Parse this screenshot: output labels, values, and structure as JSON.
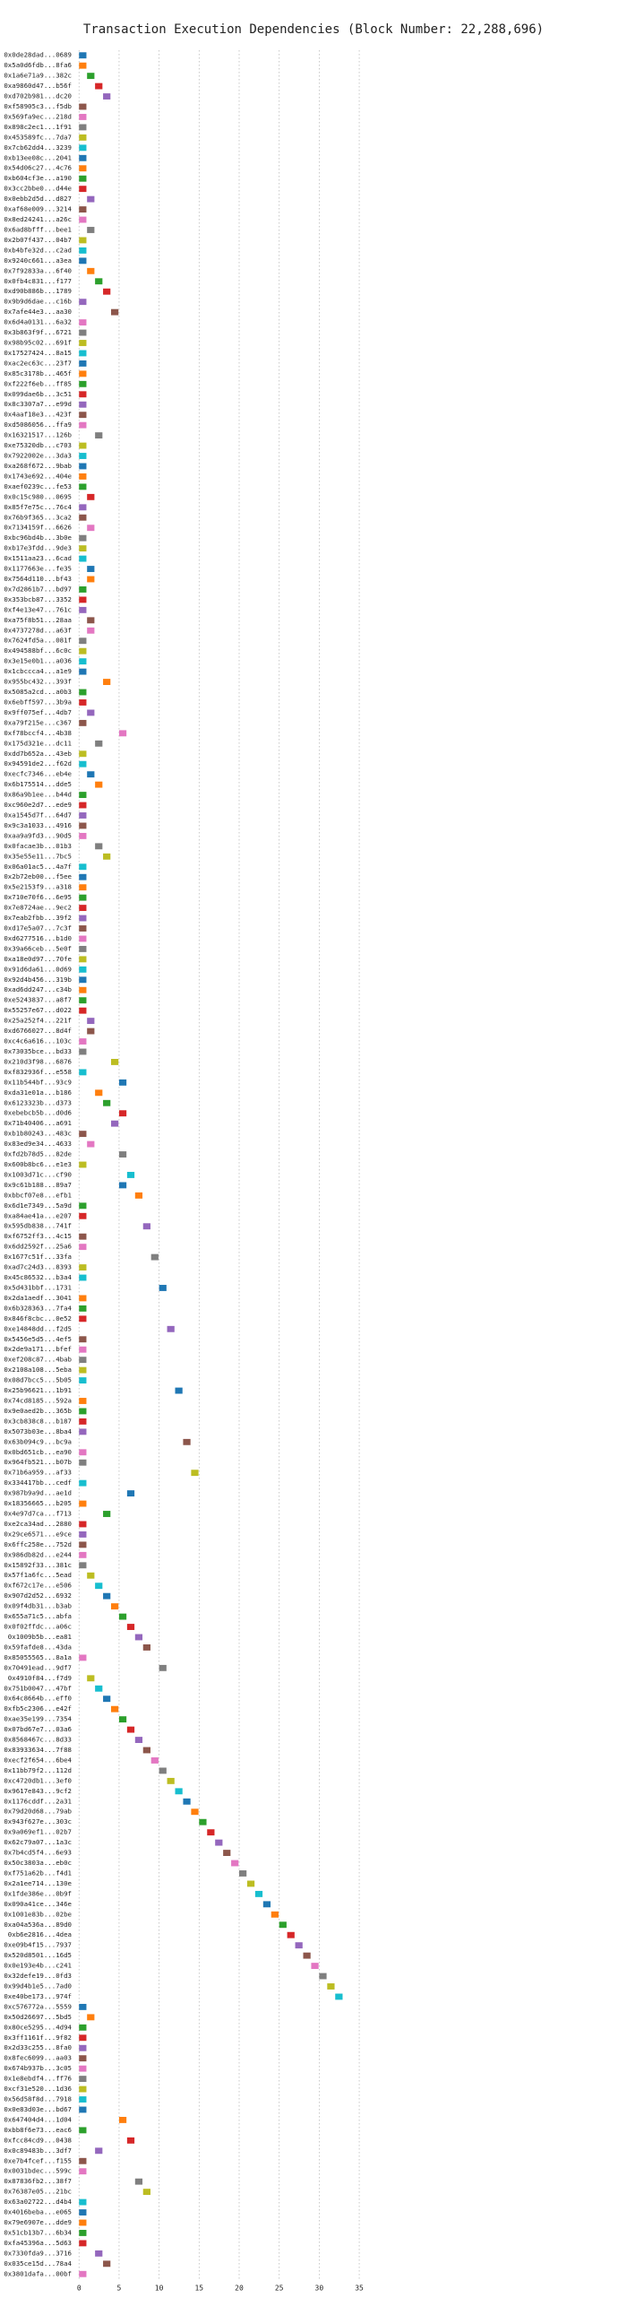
{
  "chart_data": {
    "type": "bar",
    "orientation": "horizontal",
    "title": "Transaction Execution Dependencies (Block Number: 22,288,696)",
    "categories": [
      "0x0de28dad...0689",
      "0x5a0d6fdb...8fa6",
      "0x1a6e71a9...382c",
      "0xa9860d47...b56f",
      "0xd702b981...dc20",
      "0xf58905c3...f5db",
      "0x569fa9ec...218d",
      "0x898c2ec1...1f91",
      "0x453589fc...7da7",
      "0x7cb62dd4...3239",
      "0xb13ee08c...2041",
      "0x54d06c27...4c76",
      "0xb604cf3e...a190",
      "0x3cc2bbe0...d44e",
      "0x0ebb2d5d...d827",
      "0xaf68e009...3214",
      "0x8ed24241...a26c",
      "0x6ad8bfff...bee1",
      "0x2b07f437...04b7",
      "0xb4bfe32d...c2ad",
      "0x9240c661...a3ea",
      "0x7f92833a...6f40",
      "0x0fb4c831...f177",
      "0xd90b886b...1789",
      "0x9b9d6dae...c16b",
      "0x7afe44e3...aa30",
      "0x6d4a0131...6a32",
      "0x3b863f9f...6721",
      "0x98b95c02...691f",
      "0x17527424...8a15",
      "0xac2ec63c...23f7",
      "0x85c3178b...465f",
      "0xf222f6eb...ff85",
      "0x099dae6b...3c51",
      "0x8c3307a7...e99d",
      "0x4aaf18e3...423f",
      "0xd5086056...ffa9",
      "0x16321517...126b",
      "0xe75320db...c703",
      "0x7922002e...3da3",
      "0xa268f672...9bab",
      "0x1743e692...404e",
      "0xaef0239c...fe53",
      "0x0c15c980...0695",
      "0x85f7e75c...76c4",
      "0x76b9f365...3ca2",
      "0x7134159f...6626",
      "0xbc96bd4b...3b0e",
      "0xb17e3fdd...9de3",
      "0x1511aa23...6cad",
      "0x1177663e...fe35",
      "0x7564d110...bf43",
      "0x7d2861b7...bd97",
      "0x353bcb87...3352",
      "0xf4e13e47...761c",
      "0xa75f8b51...28aa",
      "0x4737278d...a63f",
      "0x7624fd5a...081f",
      "0x494588bf...6c0c",
      "0x3e15e0b1...a036",
      "0x1cbccca4...a1e9",
      "0x955bc432...393f",
      "0x5085a2cd...a0b3",
      "0x6ebff597...3b9a",
      "0x9ff075ef...4db7",
      "0xa79f215e...c367",
      "0xf78bccf4...4b38",
      "0x175d321e...dc11",
      "0xdd7b652a...43eb",
      "0x94591de2...f62d",
      "0xecfc7346...eb4e",
      "0x6b175514...dde5",
      "0x86a9b1ee...b44d",
      "0xc960e2d7...ede9",
      "0xa1545d7f...64d7",
      "0x9c3a1033...4916",
      "0xaa9a9fd3...90d5",
      "0x0facae3b...01b3",
      "0x35e55e11...7bc5",
      "0x06a01ac5...4a7f",
      "0x2b72eb00...f5ee",
      "0x5e2153f9...a318",
      "0x710e70f6...6e95",
      "0x7e8724ae...9ec2",
      "0x7eab2fbb...39f2",
      "0xd17e5a07...7c3f",
      "0xd6277516...b1d0",
      "0x39a66ceb...5e0f",
      "0xa18e0d97...70fe",
      "0x91d6da61...0d69",
      "0x92d4b456...319b",
      "0xad6dd247...c34b",
      "0xe5243837...a8f7",
      "0x55257e67...d022",
      "0x25a252f4...221f",
      "0xd6766027...8d4f",
      "0xc4c6a616...103c",
      "0x73035bce...bd33",
      "0x210d3f98...6876",
      "0xf832936f...e558",
      "0x11b544bf...93c9",
      "0xda31e01a...b186",
      "0x6123323b...d373",
      "0xebebcb5b...d0d6",
      "0x71b40406...a691",
      "0xb1b80243...483c",
      "0x83ed9e34...4633",
      "0xfd2b78d5...82de",
      "0x600b8bc6...e1e3",
      "0x1003d71c...cf90",
      "0x9c61b188...89a7",
      "0xbbcf07e8...efb1",
      "0x6d1e7349...5a9d",
      "0xa84ae41a...e207",
      "0x595db838...741f",
      "0xf6752ff3...4c15",
      "0x6dd2592f...25a6",
      "0x1677c51f...33fa",
      "0xad7c24d3...8393",
      "0x45c86532...b3a4",
      "0x5d431bbf...1731",
      "0x2da1aedf...3041",
      "0x6b328363...7fa4",
      "0x846f8cbc...0e52",
      "0xe14848dd...f2d5",
      "0x5456e5d5...4ef5",
      "0x2de9a171...bfef",
      "0xef208c87...4bab",
      "0x2108a108...5eba",
      "0x08d7bcc5...5b05",
      "0x25b96621...1b91",
      "0x74cd8185...592a",
      "0x9e0aed2b...365b",
      "0x3cb838c8...b187",
      "0x5073b03e...8ba4",
      "0x63b094c9...bc9a",
      "0x0bd651cb...ea90",
      "0x964fb521...b07b",
      "0x71b6a959...af33",
      "0x334417bb...cedf",
      "0x987b9a9d...ae1d",
      "0x18356665...b205",
      "0x4e97d7ca...f713",
      "0xe2ca34ad...2880",
      "0x29ce6571...e9ce",
      "0x6ffc258e...752d",
      "0x986db82d...e244",
      "0x15892f33...381c",
      "0x57f1a6fc...5ead",
      "0xf672c17e...e506",
      "0x907d2d52...6932",
      "0x09f4db31...b3ab",
      "0x655a71c5...abfa",
      "0x0f02ffdc...a06c",
      "0x1009b5b...ea81",
      "0x59fafde8...43da",
      "0x85055565...8a1a",
      "0x70491ead...9df7",
      "0x4910f84...f7d9",
      "0x751b0047...47bf",
      "0x64c8664b...eff0",
      "0xfb5c2306...e42f",
      "0xae35e199...7354",
      "0x07bd67e7...03a6",
      "0x8568467c...8d33",
      "0x83933634...7f88",
      "0xecf2f654...6be4",
      "0x11bb79f2...112d",
      "0xc4720db1...3ef0",
      "0x9617e843...9cf2",
      "0x1176cddf...2a31",
      "0x79d20d68...79ab",
      "0x943f627e...303c",
      "0x9a069ef1...02b7",
      "0x62c79a07...1a3c",
      "0x7b4cd5f4...6e93",
      "0x50c3803a...eb0c",
      "0xf751a62b...f4d1",
      "0x2a1ee714...130e",
      "0x1fde386e...0b9f",
      "0x090a41ce...346e",
      "0x1001e83b...02be",
      "0xa04a536a...89d0",
      "0xb6e2816...4dea",
      "0xe09b4f15...7937",
      "0x520d8501...16d5",
      "0x0e193e4b...c241",
      "0x32defe19...0fd3",
      "0x99d4b1e5...7ad0",
      "0xe40be173...974f",
      "0xc576772a...5559",
      "0x50d26697...5bd5",
      "0x80ce5295...4d94",
      "0x3ff1161f...9f82",
      "0x2d33c255...8fa0",
      "0x8fec6099...aa03",
      "0x674b937b...3c05",
      "0x1e8ebdf4...ff76",
      "0xcf31e520...1d36",
      "0x56d58f8d...7918",
      "0x0e83d03e...bd67",
      "0x647404d4...1d04",
      "0xbb8f6e73...eac6",
      "0xfcc84cd9...0438",
      "0x0c89483b...3df7",
      "0xe7b4fcef...f155",
      "0x0031bdec...599c",
      "0x87836fb2...38f7",
      "0x76387e05...21bc",
      "0x63a02722...d4b4",
      "0x4016beba...e065",
      "0x79e6907e...dde9",
      "0x51cb13b7...6b34",
      "0xfa45396a...5d63",
      "0x7330fda9...3716",
      "0x035ce15d...78a4",
      "0x3801dafa...00bf"
    ],
    "values": [
      0,
      0,
      1,
      2,
      3,
      0,
      0,
      0,
      0,
      0,
      0,
      0,
      0,
      0,
      1,
      0,
      0,
      1,
      0,
      0,
      0,
      1,
      2,
      3,
      0,
      4,
      0,
      0,
      0,
      0,
      0,
      0,
      0,
      0,
      0,
      0,
      0,
      2,
      0,
      0,
      0,
      0,
      0,
      1,
      0,
      0,
      1,
      0,
      0,
      0,
      1,
      1,
      0,
      0,
      0,
      1,
      1,
      0,
      0,
      0,
      0,
      3,
      0,
      0,
      1,
      0,
      5,
      2,
      0,
      0,
      1,
      2,
      0,
      0,
      0,
      0,
      0,
      2,
      3,
      0,
      0,
      0,
      0,
      0,
      0,
      0,
      0,
      0,
      0,
      0,
      0,
      0,
      0,
      0,
      1,
      1,
      0,
      0,
      4,
      0,
      5,
      2,
      3,
      5,
      4,
      0,
      1,
      5,
      0,
      6,
      5,
      7,
      0,
      0,
      8,
      0,
      0,
      9,
      0,
      0,
      10,
      0,
      0,
      0,
      11,
      0,
      0,
      0,
      0,
      0,
      12,
      0,
      0,
      0,
      0,
      13,
      0,
      0,
      14,
      0,
      6,
      0,
      3,
      0,
      0,
      0,
      0,
      0,
      1,
      2,
      3,
      4,
      5,
      6,
      7,
      8,
      0,
      10,
      1,
      2,
      3,
      4,
      5,
      6,
      7,
      8,
      9,
      10,
      11,
      12,
      13,
      14,
      15,
      16,
      17,
      18,
      19,
      20,
      21,
      22,
      23,
      24,
      25,
      26,
      27,
      28,
      29,
      30,
      31,
      32,
      0,
      1,
      0,
      0,
      0,
      0,
      0,
      0,
      0,
      0,
      0,
      5,
      0,
      6,
      2,
      0,
      0,
      7,
      8,
      0,
      0,
      0,
      0,
      0,
      2,
      3,
      0
    ],
    "colors": [
      "#1f77b4",
      "#ff7f0e",
      "#2ca02c",
      "#d62728",
      "#9467bd",
      "#8c564b",
      "#e377c2",
      "#7f7f7f",
      "#bcbd22",
      "#17becf"
    ],
    "xlim": [
      -0.7,
      36
    ],
    "xticks": [
      0,
      5,
      10,
      15,
      20,
      25,
      30,
      35
    ],
    "grid": true
  }
}
